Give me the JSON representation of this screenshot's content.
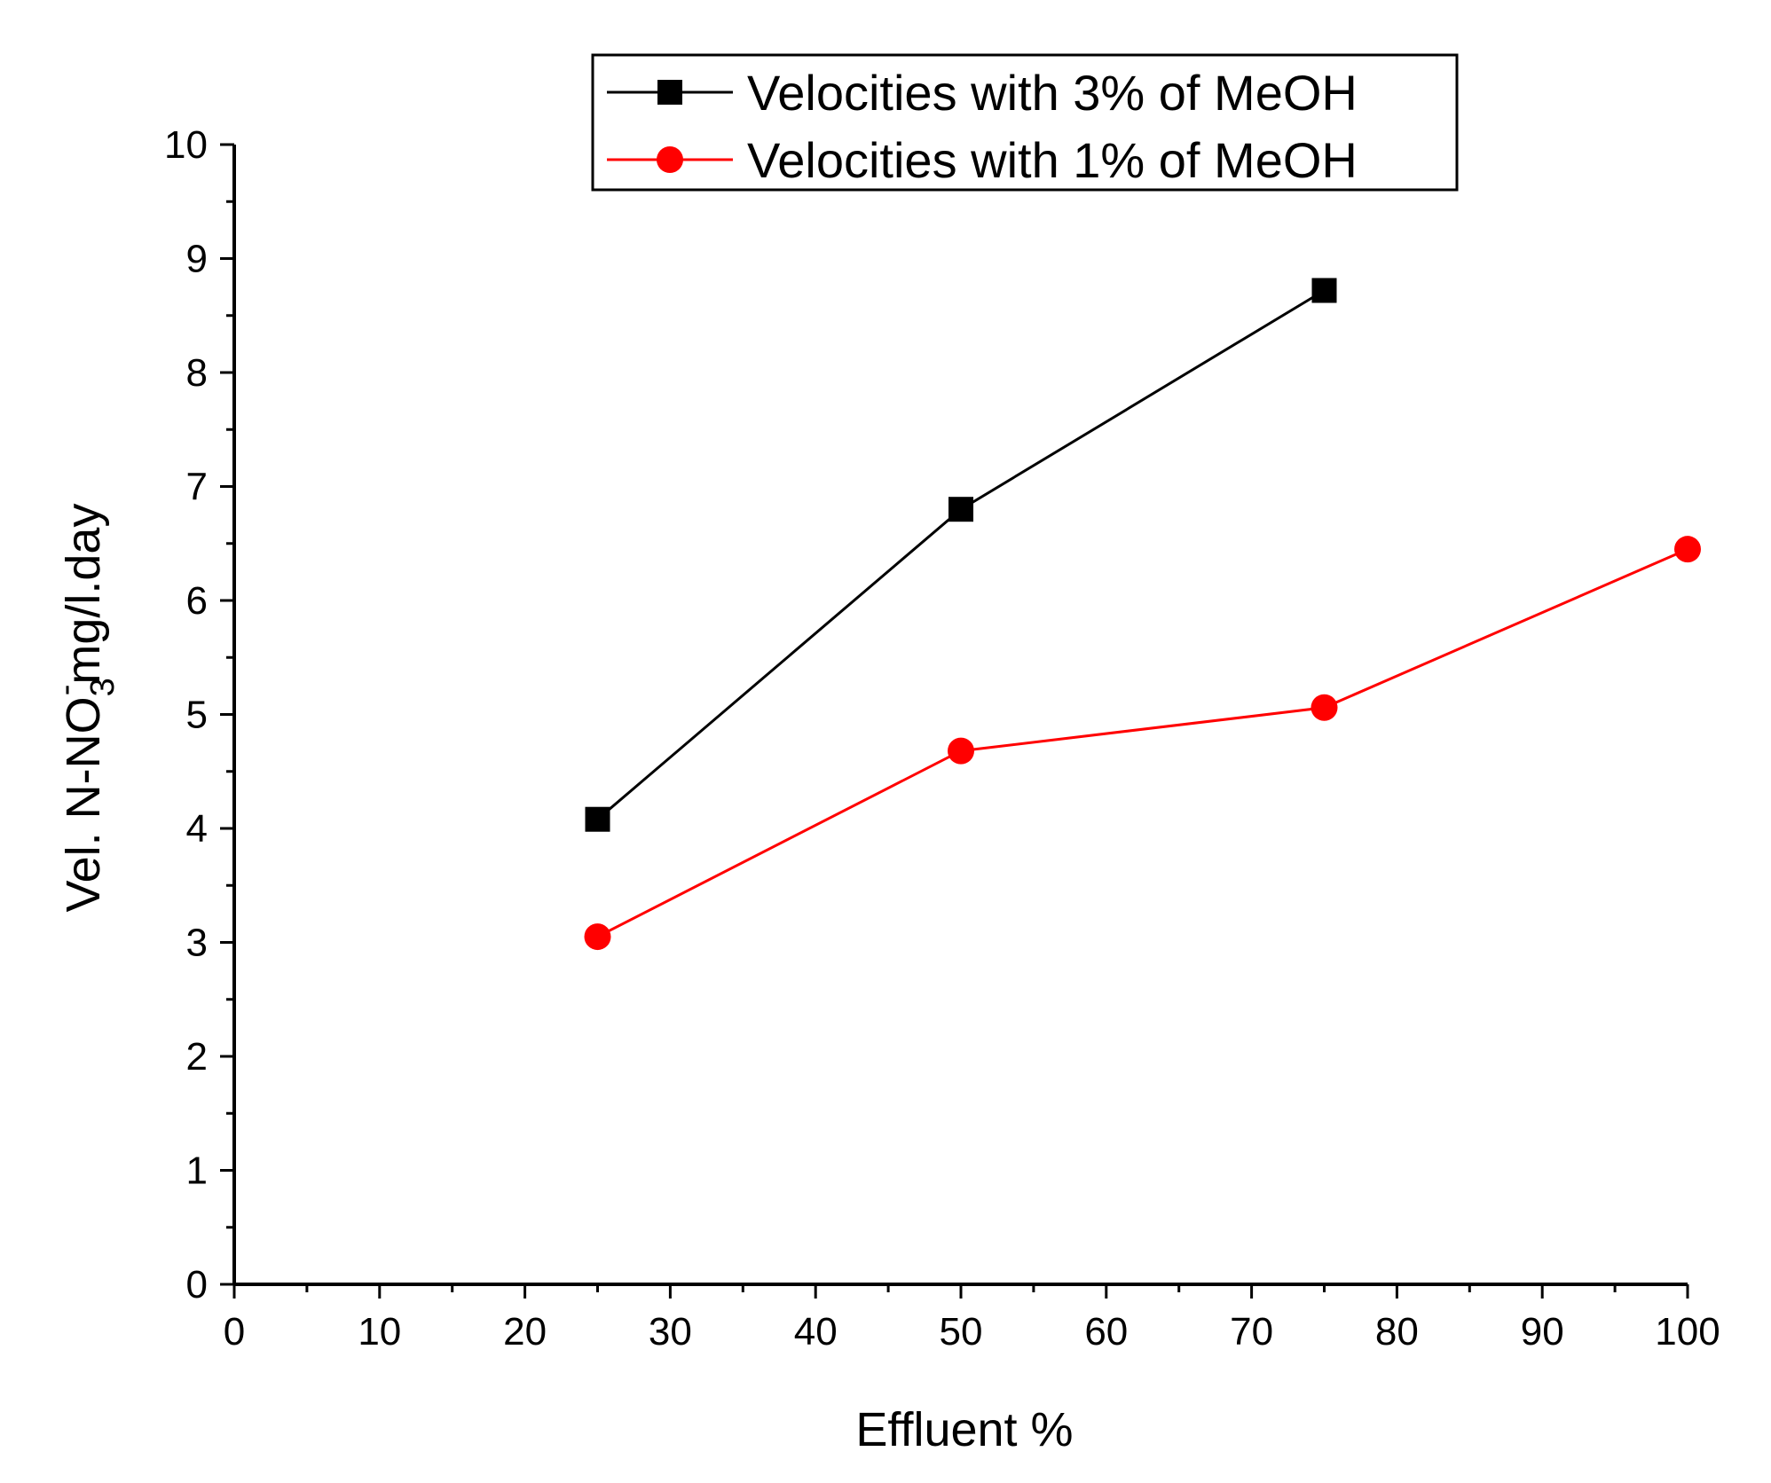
{
  "chart_data": {
    "type": "line",
    "title": "",
    "xlabel": "Effluent %",
    "ylabel": {
      "prefix": "Vel. N-NO",
      "subscript": "3",
      "superscript": "-",
      "suffix": "mg/l.day"
    },
    "xlim": [
      0,
      100
    ],
    "ylim": [
      0,
      10
    ],
    "x_ticks": [
      0,
      10,
      20,
      30,
      40,
      50,
      60,
      70,
      80,
      90,
      100
    ],
    "y_ticks": [
      0,
      1,
      2,
      3,
      4,
      5,
      6,
      7,
      8,
      9,
      10
    ],
    "grid": false,
    "legend_position": "top-right",
    "series": [
      {
        "name": "Velocities with 3% of MeOH",
        "color": "#000000",
        "marker": "square",
        "x": [
          25,
          50,
          75
        ],
        "values": [
          4.08,
          6.8,
          8.72
        ]
      },
      {
        "name": "Velocities with 1% of MeOH",
        "color": "#ff0000",
        "marker": "circle",
        "x": [
          25,
          50,
          75,
          100
        ],
        "values": [
          3.05,
          4.68,
          5.06,
          6.45
        ]
      }
    ]
  }
}
